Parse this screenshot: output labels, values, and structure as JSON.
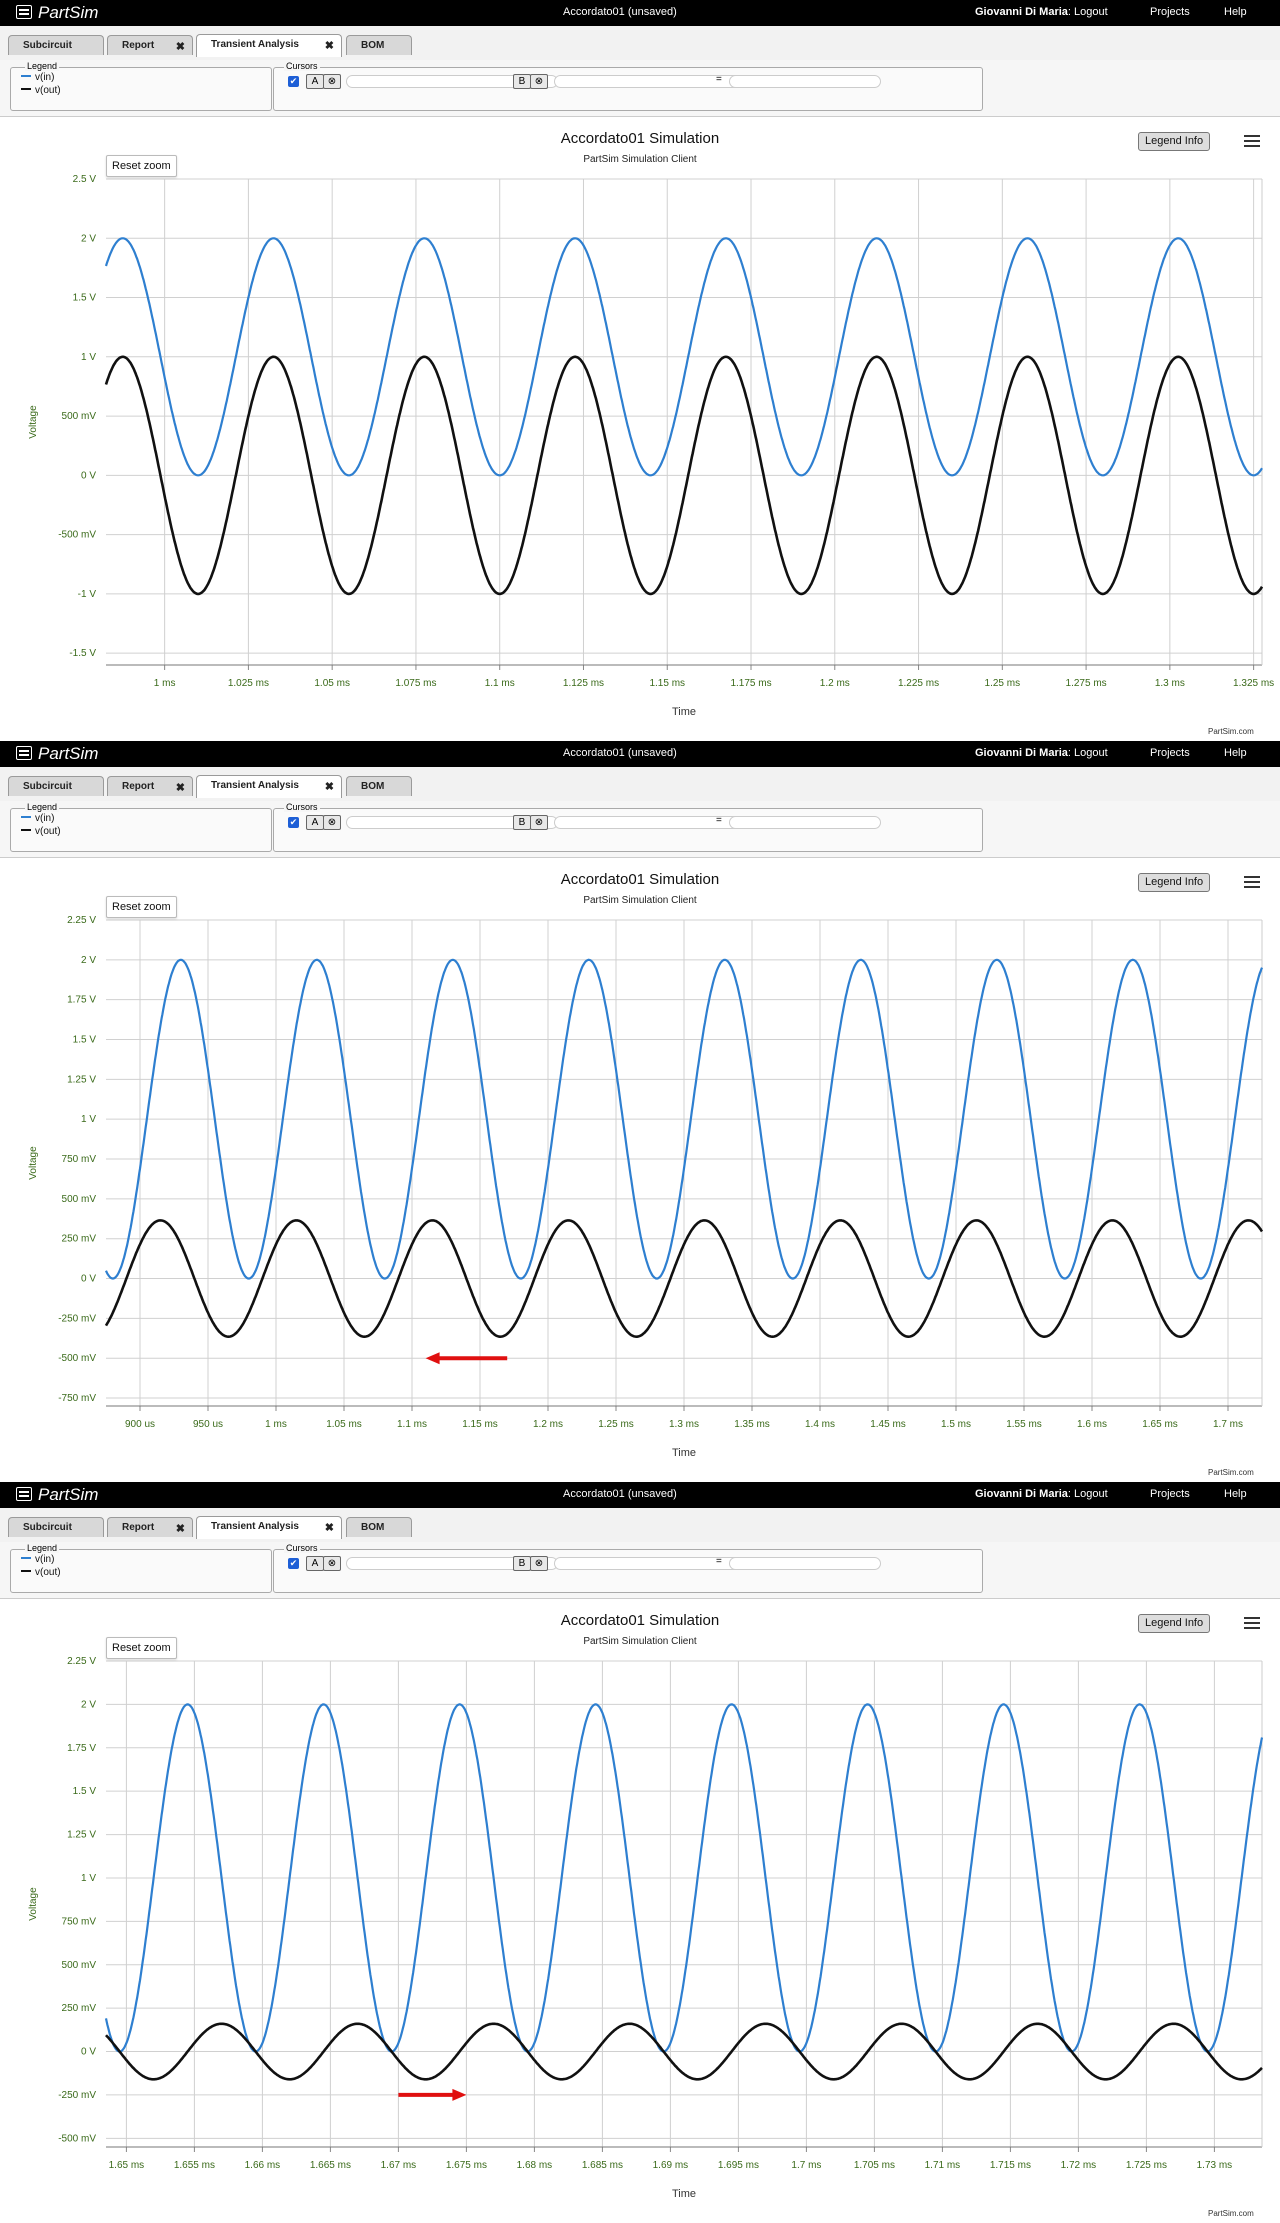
{
  "app": {
    "name": "PartSim"
  },
  "header": {
    "project_title": "Accordato01 (unsaved)",
    "user": "Giovanni Di Maria",
    "logout": "Logout",
    "projects": "Projects",
    "help": "Help"
  },
  "tabs": [
    {
      "label": "Subcircuit",
      "closable": false
    },
    {
      "label": "Report",
      "closable": true
    },
    {
      "label": "Transient Analysis",
      "closable": true,
      "active": true
    },
    {
      "label": "BOM",
      "closable": false
    }
  ],
  "legend": {
    "title": "Legend",
    "items": [
      {
        "label": "v(in)",
        "color": "#2e7fd0"
      },
      {
        "label": "v(out)",
        "color": "#111111"
      }
    ]
  },
  "cursors": {
    "title": "Cursors",
    "a_label": "A",
    "b_label": "B",
    "clear_icon": "circle-x-icon",
    "equals": "="
  },
  "chart_common": {
    "title": "Accordato01 Simulation",
    "subtitle": "PartSim Simulation Client",
    "legend_button": "Legend Info",
    "reset_zoom": "Reset zoom",
    "ylabel": "Voltage",
    "xlabel": "Time",
    "credit": "PartSim.com",
    "colors": {
      "vin": "#2e7fd0",
      "vout": "#111111",
      "annotation_arrow": "#e01010",
      "axis_label": "#3a6a1a"
    }
  },
  "chart_data": [
    {
      "type": "line",
      "title": "Accordato01 Simulation",
      "xlabel": "Time",
      "ylabel": "Voltage",
      "xlim": [
        0.9825,
        1.3275
      ],
      "x_unit": "ms",
      "ylim": [
        -1.6,
        2.5
      ],
      "x_ticks": [
        1.0,
        1.025,
        1.05,
        1.075,
        1.1,
        1.125,
        1.15,
        1.175,
        1.2,
        1.225,
        1.25,
        1.275,
        1.3,
        1.325
      ],
      "x_tick_labels": [
        "1 ms",
        "1.025 ms",
        "1.05 ms",
        "1.075 ms",
        "1.1 ms",
        "1.125 ms",
        "1.15 ms",
        "1.175 ms",
        "1.2 ms",
        "1.225 ms",
        "1.25 ms",
        "1.275 ms",
        "1.3 ms",
        "1.325 ms"
      ],
      "y_ticks": [
        2.5,
        2.0,
        1.5,
        1.0,
        0.5,
        0.0,
        -0.5,
        -1.0,
        -1.5
      ],
      "y_tick_labels": [
        "2.5 V",
        "2 V",
        "1.5 V",
        "1 V",
        "500 mV",
        "0 V",
        "-500 mV",
        "-1 V",
        "-1.5 V"
      ],
      "grid": true,
      "series": [
        {
          "name": "v(in)",
          "period_ms": 0.045,
          "offset_V": 1.0,
          "amplitude_V": 1.0,
          "first_peak_ms": 0.9875
        },
        {
          "name": "v(out)",
          "period_ms": 0.045,
          "offset_V": 0.0,
          "amplitude_V": 1.0,
          "first_peak_ms": 0.9875
        }
      ],
      "annotation": null
    },
    {
      "type": "line",
      "title": "Accordato01 Simulation",
      "xlabel": "Time",
      "ylabel": "Voltage",
      "xlim": [
        0.875,
        1.725
      ],
      "x_unit": "ms",
      "ylim": [
        -0.8,
        2.25
      ],
      "x_ticks": [
        0.9,
        0.95,
        1.0,
        1.05,
        1.1,
        1.15,
        1.2,
        1.25,
        1.3,
        1.35,
        1.4,
        1.45,
        1.5,
        1.55,
        1.6,
        1.65,
        1.7
      ],
      "x_tick_labels": [
        "900 us",
        "950 us",
        "1 ms",
        "1.05 ms",
        "1.1 ms",
        "1.15 ms",
        "1.2 ms",
        "1.25 ms",
        "1.3 ms",
        "1.35 ms",
        "1.4 ms",
        "1.45 ms",
        "1.5 ms",
        "1.55 ms",
        "1.6 ms",
        "1.65 ms",
        "1.7 ms"
      ],
      "y_ticks": [
        2.25,
        2.0,
        1.75,
        1.5,
        1.25,
        1.0,
        0.75,
        0.5,
        0.25,
        0.0,
        -0.25,
        -0.5,
        -0.75
      ],
      "y_tick_labels": [
        "2.25 V",
        "2 V",
        "1.75 V",
        "1.5 V",
        "1.25 V",
        "1 V",
        "750 mV",
        "500 mV",
        "250 mV",
        "0 V",
        "-250 mV",
        "-500 mV",
        "-750 mV"
      ],
      "grid": true,
      "series": [
        {
          "name": "v(in)",
          "period_ms": 0.1,
          "offset_V": 1.0,
          "amplitude_V": 1.0,
          "first_peak_ms": 0.93
        },
        {
          "name": "v(out)",
          "period_ms": 0.1,
          "offset_V": 0.0,
          "amplitude_V": 0.365,
          "first_peak_ms": 0.915
        }
      ],
      "annotation": {
        "direction": "left",
        "x_from_ms": 1.17,
        "x_to_ms": 1.11,
        "y_V": -0.5
      }
    },
    {
      "type": "line",
      "title": "Accordato01 Simulation",
      "xlabel": "Time",
      "ylabel": "Voltage",
      "xlim": [
        1.6485,
        1.7335
      ],
      "x_unit": "ms",
      "ylim": [
        -0.55,
        2.25
      ],
      "x_ticks": [
        1.65,
        1.655,
        1.66,
        1.665,
        1.67,
        1.675,
        1.68,
        1.685,
        1.69,
        1.695,
        1.7,
        1.705,
        1.71,
        1.715,
        1.72,
        1.725,
        1.73
      ],
      "x_tick_labels": [
        "1.65 ms",
        "1.655 ms",
        "1.66 ms",
        "1.665 ms",
        "1.67 ms",
        "1.675 ms",
        "1.68 ms",
        "1.685 ms",
        "1.69 ms",
        "1.695 ms",
        "1.7 ms",
        "1.705 ms",
        "1.71 ms",
        "1.715 ms",
        "1.72 ms",
        "1.725 ms",
        "1.73 ms"
      ],
      "y_ticks": [
        2.25,
        2.0,
        1.75,
        1.5,
        1.25,
        1.0,
        0.75,
        0.5,
        0.25,
        0.0,
        -0.25,
        -0.5
      ],
      "y_tick_labels": [
        "2.25 V",
        "2 V",
        "1.75 V",
        "1.5 V",
        "1.25 V",
        "1 V",
        "750 mV",
        "500 mV",
        "250 mV",
        "0 V",
        "-250 mV",
        "-500 mV"
      ],
      "grid": true,
      "series": [
        {
          "name": "v(in)",
          "period_ms": 0.01,
          "offset_V": 1.0,
          "amplitude_V": 1.0,
          "first_peak_ms": 1.6545
        },
        {
          "name": "v(out)",
          "period_ms": 0.01,
          "offset_V": 0.0,
          "amplitude_V": 0.16,
          "first_peak_ms": 1.657
        }
      ],
      "annotation": {
        "direction": "right",
        "x_from_ms": 1.67,
        "x_to_ms": 1.675,
        "y_V": -0.25
      }
    }
  ]
}
